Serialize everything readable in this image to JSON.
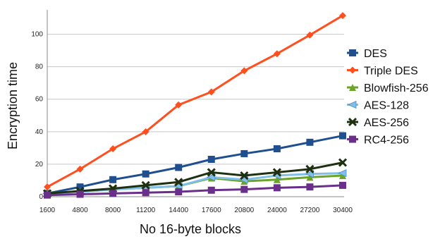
{
  "chart_data": {
    "type": "line",
    "title": "",
    "xlabel": "No 16-byte blocks",
    "ylabel": "Encryption time",
    "categories": [
      "1600",
      "4800",
      "8000",
      "11200",
      "14400",
      "17600",
      "20800",
      "24000",
      "27200",
      "30400"
    ],
    "ylim": [
      0,
      115
    ],
    "yticks": [
      0,
      20,
      40,
      60,
      80,
      100
    ],
    "grid": "horizontal",
    "legend": "right",
    "series": [
      {
        "name": "DES",
        "color": "#1f4f8f",
        "marker": "square",
        "values": [
          2,
          6,
          10.5,
          14,
          18,
          23,
          26.5,
          29.5,
          33.5,
          37.5
        ]
      },
      {
        "name": "Triple DES",
        "color": "#ff4f1f",
        "marker": "diamond",
        "values": [
          6,
          17,
          29.5,
          40,
          56.5,
          64.5,
          77.5,
          88,
          99.5,
          111.5
        ]
      },
      {
        "name": "Blowfish-256",
        "color": "#6aa52a",
        "marker": "triangle",
        "values": [
          2,
          3,
          4.5,
          5.5,
          6.5,
          11.5,
          9.5,
          10.5,
          12,
          13
        ]
      },
      {
        "name": "AES-128",
        "color": "#7fbfe8",
        "marker": "tri-left",
        "values": [
          2,
          3,
          4.5,
          5.5,
          6.5,
          12,
          10.5,
          13,
          14,
          14.5
        ]
      },
      {
        "name": "AES-256",
        "color": "#1e3010",
        "marker": "x",
        "values": [
          2,
          3.5,
          5,
          7,
          9,
          15,
          13,
          15,
          17,
          21
        ]
      },
      {
        "name": "RC4-256",
        "color": "#6a2f8a",
        "marker": "square",
        "values": [
          1,
          1.5,
          2,
          2.5,
          3,
          4,
          4.5,
          5.5,
          6,
          7
        ]
      }
    ]
  }
}
